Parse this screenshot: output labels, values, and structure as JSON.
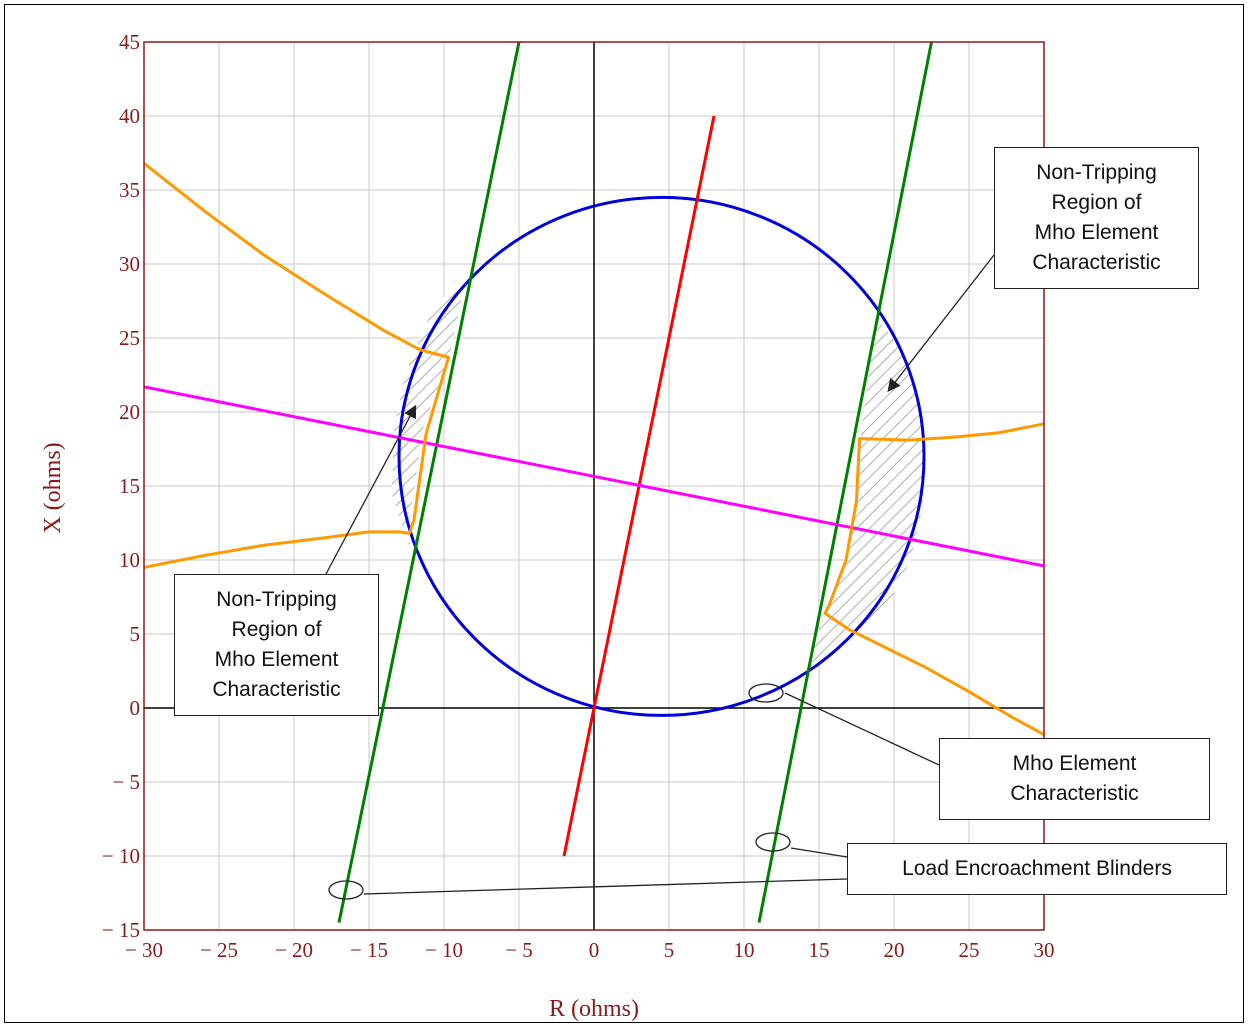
{
  "chart_data": {
    "type": "line",
    "xlabel": "R (ohms)",
    "ylabel": "X (ohms)",
    "xlim": [
      -30,
      30
    ],
    "ylim": [
      -15,
      45
    ],
    "x_ticks": [
      -30,
      -25,
      -20,
      -15,
      -10,
      -5,
      0,
      5,
      10,
      15,
      20,
      25,
      30
    ],
    "y_ticks": [
      -15,
      -10,
      -5,
      0,
      5,
      10,
      15,
      20,
      25,
      30,
      35,
      40,
      45
    ],
    "x_tick_labels": [
      "− 30",
      "− 25",
      "− 20",
      "− 15",
      "− 10",
      "− 5",
      "0",
      "5",
      "10",
      "15",
      "20",
      "25",
      "30"
    ],
    "y_tick_labels": [
      "− 15",
      "− 10",
      "− 5",
      "0",
      "5",
      "10",
      "15",
      "20",
      "25",
      "30",
      "35",
      "40",
      "45"
    ],
    "grid": true,
    "series": [
      {
        "kind": "circle",
        "color": "#0000dd",
        "center": [
          4.5,
          17
        ],
        "radius": 17.5
      },
      {
        "kind": "segment",
        "color": "#008000",
        "points": [
          [
            -17,
            -14.5
          ],
          [
            -5,
            45
          ]
        ]
      },
      {
        "kind": "segment",
        "color": "#008000",
        "points": [
          [
            11,
            -14.5
          ],
          [
            22.5,
            45
          ]
        ]
      },
      {
        "kind": "segment",
        "color": "#ff0000",
        "points": [
          [
            -2,
            -10
          ],
          [
            8,
            40
          ]
        ]
      },
      {
        "kind": "segment",
        "color": "#ff00ff",
        "points": [
          [
            -30,
            21.7
          ],
          [
            30,
            9.6
          ]
        ]
      },
      {
        "kind": "polyline",
        "color": "#ff9900",
        "points": [
          [
            -30,
            36.8
          ],
          [
            -26,
            33.6
          ],
          [
            -22,
            30.6
          ],
          [
            -18,
            28
          ],
          [
            -14,
            25.5
          ],
          [
            -11.6,
            24.2
          ],
          [
            -9.7,
            23.7
          ],
          [
            -11.2,
            18.5
          ],
          [
            -12,
            12.7
          ],
          [
            -12.3,
            11.8
          ],
          [
            -13,
            11.9
          ],
          [
            -15,
            11.9
          ],
          [
            -18,
            11.5
          ],
          [
            -22,
            11
          ],
          [
            -26,
            10.3
          ],
          [
            -30,
            9.5
          ]
        ]
      },
      {
        "kind": "polyline",
        "color": "#ff9900",
        "points": [
          [
            30,
            19.2
          ],
          [
            27,
            18.6
          ],
          [
            24,
            18.3
          ],
          [
            21,
            18.1
          ],
          [
            17.7,
            18.2
          ],
          [
            17.5,
            14
          ],
          [
            16.8,
            10
          ],
          [
            15.7,
            7
          ],
          [
            15.4,
            6.4
          ],
          [
            17,
            5.3
          ],
          [
            19,
            4.3
          ],
          [
            22,
            2.8
          ],
          [
            25,
            1.1
          ],
          [
            28,
            -0.7
          ],
          [
            30,
            -1.8
          ]
        ]
      }
    ],
    "hatched_regions": [
      {
        "boundary": [
          [
            -9.6,
            23.9
          ],
          [
            -11.4,
            18.9
          ],
          [
            -12.4,
            12
          ],
          [
            -12.2,
            10.5
          ],
          [
            -13.5,
            14.5
          ],
          [
            -13.3,
            19
          ],
          [
            -12.6,
            22.5
          ],
          [
            -11.2,
            26
          ],
          [
            -9.3,
            28.8
          ],
          [
            -8.5,
            29.4
          ]
        ]
      },
      {
        "boundary": [
          [
            18.8,
            26.5
          ],
          [
            17.8,
            18.5
          ],
          [
            17.5,
            14
          ],
          [
            16.8,
            10
          ],
          [
            15.7,
            7
          ],
          [
            15.4,
            6.4
          ],
          [
            14.2,
            3
          ],
          [
            16,
            3.6
          ],
          [
            19.5,
            6.7
          ],
          [
            21.1,
            10
          ],
          [
            21.9,
            13.6
          ],
          [
            22,
            17
          ],
          [
            21.8,
            20.3
          ],
          [
            20.9,
            23.6
          ]
        ]
      }
    ],
    "annotations": [
      {
        "text": "Non-Tripping\nRegion of\nMho Element\nCharacteristic"
      },
      {
        "text": "Non-Tripping\nRegion of\nMho Element\nCharacteristic"
      },
      {
        "text": "Mho Element\nCharacteristic"
      },
      {
        "text": "Load Encroachment Blinders"
      }
    ]
  }
}
